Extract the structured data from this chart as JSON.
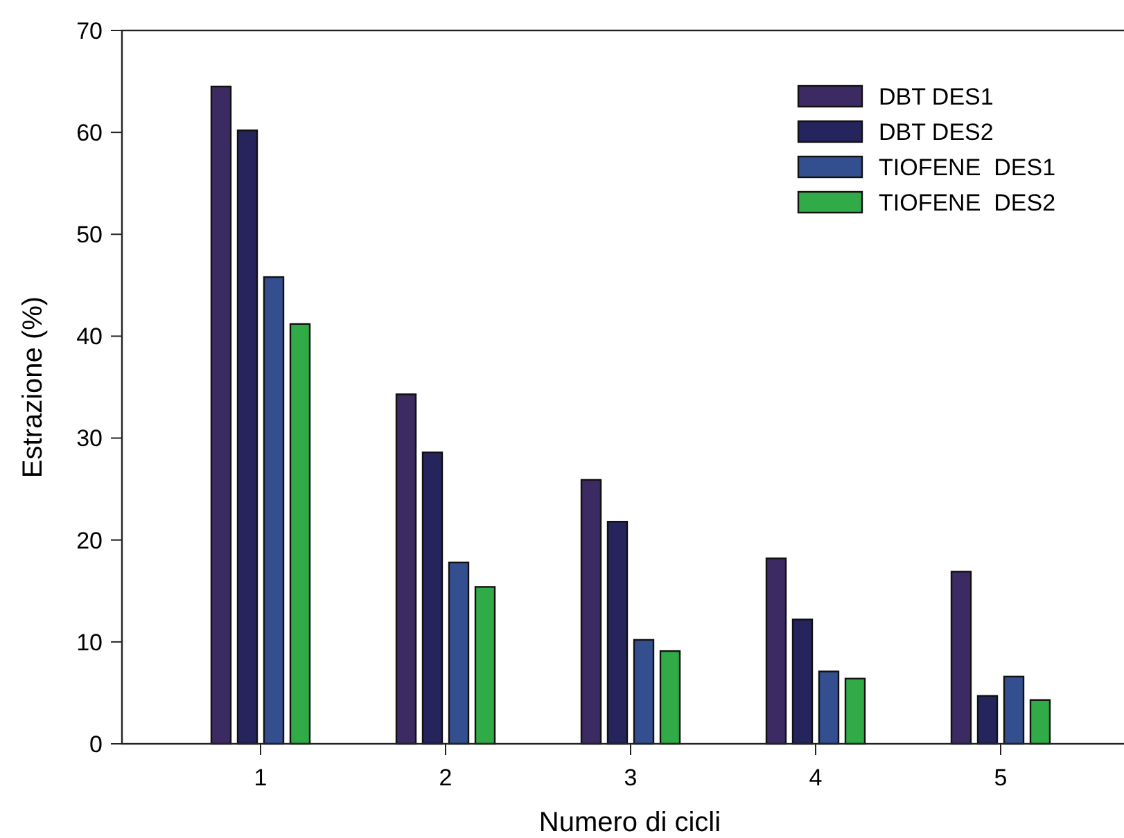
{
  "chart_data": {
    "type": "bar",
    "xlabel": "Numero di cicli",
    "ylabel": "Estrazione (%)",
    "categories": [
      "1",
      "2",
      "3",
      "4",
      "5"
    ],
    "series": [
      {
        "name": "DBT DES1",
        "color": "#3c2a63",
        "values": [
          64.5,
          34.3,
          25.9,
          18.2,
          16.9
        ]
      },
      {
        "name": "DBT DES2",
        "color": "#25245c",
        "values": [
          60.2,
          28.6,
          21.8,
          12.2,
          4.7
        ]
      },
      {
        "name": "TIOFENE  DES1",
        "color": "#344f90",
        "values": [
          45.8,
          17.8,
          10.2,
          7.1,
          6.6
        ]
      },
      {
        "name": "TIOFENE  DES2",
        "color": "#30ab48",
        "values": [
          41.2,
          15.4,
          9.1,
          6.4,
          4.3
        ]
      }
    ],
    "ylim": [
      0,
      70
    ],
    "yticks": [
      0,
      10,
      20,
      30,
      40,
      50,
      60,
      70
    ],
    "grid": false,
    "legend": "top right"
  }
}
